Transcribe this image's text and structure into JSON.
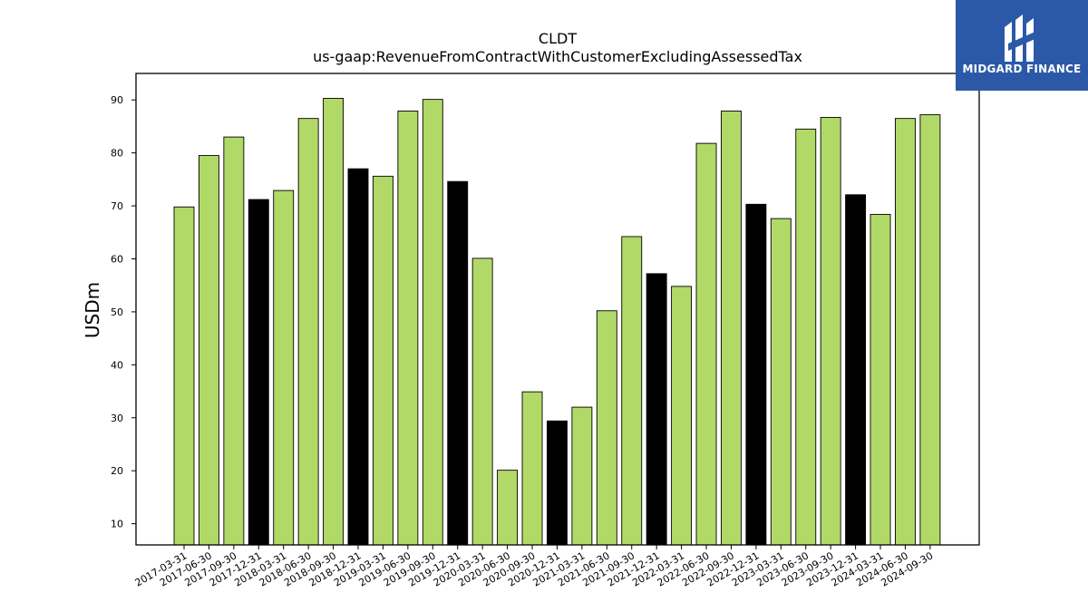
{
  "brand": {
    "name": "MIDGARD FINANCE",
    "background_color": "#2b59a8",
    "icon": "midgard-logo-icon"
  },
  "chart_data": {
    "type": "bar",
    "title": "CLDT",
    "subtitle": "us-gaap:RevenueFromContractWithCustomerExcludingAssessedTax",
    "xlabel": "",
    "ylabel": "USDm",
    "ylim": [
      6,
      95
    ],
    "yticks": [
      10,
      20,
      30,
      40,
      50,
      60,
      70,
      80,
      90
    ],
    "grid": false,
    "colors": {
      "quarter": "#b1d968",
      "year_end": "#000000",
      "edge": "#000000"
    },
    "categories": [
      "2017-03-31",
      "2017-06-30",
      "2017-09-30",
      "2017-12-31",
      "2018-03-31",
      "2018-06-30",
      "2018-09-30",
      "2018-12-31",
      "2019-03-31",
      "2019-06-30",
      "2019-09-30",
      "2019-12-31",
      "2020-03-31",
      "2020-06-30",
      "2020-09-30",
      "2020-12-31",
      "2021-03-31",
      "2021-06-30",
      "2021-09-30",
      "2021-12-31",
      "2022-03-31",
      "2022-06-30",
      "2022-09-30",
      "2022-12-31",
      "2023-03-31",
      "2023-06-30",
      "2023-09-30",
      "2023-12-31",
      "2024-03-31",
      "2024-06-30",
      "2024-09-30"
    ],
    "values": [
      69.8,
      79.5,
      83.0,
      71.2,
      72.9,
      86.5,
      90.3,
      77.0,
      75.6,
      87.9,
      90.1,
      74.6,
      60.1,
      20.1,
      34.9,
      29.4,
      32.0,
      50.2,
      64.2,
      57.2,
      54.8,
      81.8,
      87.9,
      70.3,
      67.6,
      84.5,
      86.7,
      72.1,
      68.4,
      86.5,
      87.2
    ]
  }
}
